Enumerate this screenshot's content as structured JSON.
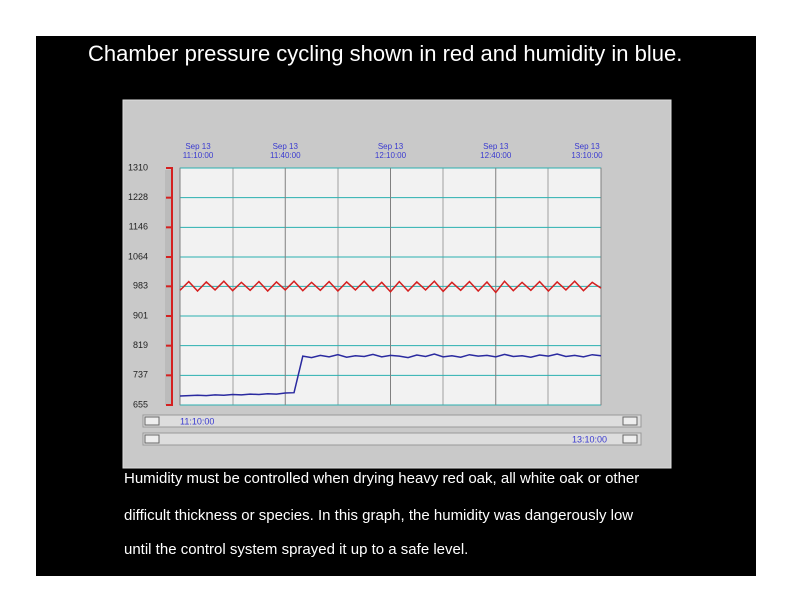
{
  "slide": {
    "title": "Chamber pressure cycling shown in red and humidity in blue.",
    "caption": [
      "Humidity must be controlled when drying heavy red oak, all white oak or other",
      "difficult thickness or species. In this graph, the humidity was dangerously low",
      "until the control system sprayed it up to a safe level."
    ]
  },
  "scrollbar": {
    "start": "11:10:00",
    "end": "13:10:00"
  },
  "chart_data": {
    "type": "line",
    "x": [
      "11:10:00",
      "11:12:30",
      "11:15:00",
      "11:17:30",
      "11:20:00",
      "11:22:30",
      "11:25:00",
      "11:27:30",
      "11:30:00",
      "11:32:30",
      "11:35:00",
      "11:37:30",
      "11:40:00",
      "11:42:30",
      "11:45:00",
      "11:47:30",
      "11:50:00",
      "11:52:30",
      "11:55:00",
      "11:57:30",
      "12:00:00",
      "12:02:30",
      "12:05:00",
      "12:07:30",
      "12:10:00",
      "12:12:30",
      "12:15:00",
      "12:17:30",
      "12:20:00",
      "12:22:30",
      "12:25:00",
      "12:27:30",
      "12:30:00",
      "12:32:30",
      "12:35:00",
      "12:37:30",
      "12:40:00",
      "12:42:30",
      "12:45:00",
      "12:47:30",
      "12:50:00",
      "12:52:30",
      "12:55:00",
      "12:57:30",
      "13:00:00",
      "13:02:30",
      "13:05:00",
      "13:07:30",
      "13:10:00"
    ],
    "series": [
      {
        "name": "Chamber pressure",
        "color": "#d42020",
        "values": [
          972,
          996,
          970,
          995,
          973,
          997,
          971,
          994,
          972,
          996,
          970,
          995,
          973,
          997,
          971,
          994,
          972,
          996,
          970,
          995,
          973,
          997,
          971,
          994,
          968,
          996,
          970,
          995,
          973,
          997,
          969,
          994,
          972,
          996,
          970,
          995,
          966,
          997,
          971,
          994,
          972,
          996,
          970,
          995,
          973,
          997,
          971,
          994,
          978
        ]
      },
      {
        "name": "Humidity",
        "color": "#2a2aa0",
        "values": [
          680,
          681,
          682,
          681,
          683,
          682,
          684,
          683,
          685,
          684,
          686,
          685,
          688,
          689,
          790,
          786,
          792,
          788,
          794,
          787,
          791,
          789,
          795,
          788,
          792,
          790,
          786,
          793,
          789,
          796,
          788,
          791,
          787,
          794,
          790,
          792,
          788,
          795,
          789,
          791,
          787,
          793,
          790,
          796,
          789,
          792,
          788,
          794,
          791
        ]
      }
    ],
    "xlim": [
      "11:10:00",
      "13:10:00"
    ],
    "xticks": [
      {
        "value": "11:10:00",
        "label": "Sep 13\n11:10:00"
      },
      {
        "value": "11:40:00",
        "label": "Sep 13\n11:40:00"
      },
      {
        "value": "12:10:00",
        "label": "Sep 13\n12:10:00"
      },
      {
        "value": "12:40:00",
        "label": "Sep 13\n12:40:00"
      },
      {
        "value": "13:10:00",
        "label": "Sep 13\n13:10:00"
      }
    ],
    "ylim": [
      655,
      1310
    ],
    "yticks": [
      655,
      737,
      819,
      901,
      983,
      1064,
      1146,
      1228,
      1310
    ],
    "grid": true
  }
}
